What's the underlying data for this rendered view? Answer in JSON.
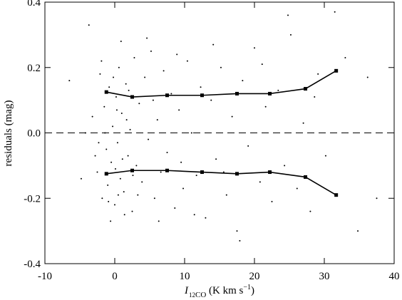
{
  "chart_data": {
    "type": "scatter",
    "ylabel": "residuals (mag)",
    "xlabel_parts": [
      "I",
      "12",
      "CO",
      " (K km s",
      "−1",
      ")"
    ],
    "xlim": [
      -10,
      40
    ],
    "xticks": [
      -10,
      0,
      10,
      20,
      30,
      40
    ],
    "ylim": [
      -0.4,
      0.4
    ],
    "yticks": [
      -0.4,
      -0.2,
      {
        "value": 0,
        "label": "0.0"
      },
      0.2,
      0.4
    ],
    "reference_line": {
      "y": 0,
      "style": "dashed"
    },
    "color": "#000000",
    "x": [
      -3.2,
      -2.5,
      -2.1,
      -1.8,
      -1.5,
      -1.2,
      -1.0,
      -0.8,
      -0.5,
      -0.3,
      0,
      0.2,
      0.4,
      0.6,
      0.8,
      1.0,
      1.3,
      1.6,
      1.9,
      2.2,
      2.5,
      2.8,
      3.1,
      3.5,
      3.9,
      4.3,
      4.8,
      5.2,
      5.7,
      6.1,
      6.6,
      7.0,
      7.5,
      8.1,
      8.6,
      9.2,
      9.8,
      10.4,
      11.0,
      11.7,
      12.3,
      13.0,
      13.8,
      14.5,
      15.2,
      16.0,
      16.8,
      17.5,
      18.3,
      19.1,
      20.0,
      20.8,
      21.6,
      22.5,
      23.4,
      24.3,
      25.2,
      26.1,
      27.0,
      28.0,
      29.1,
      30.2,
      31.5,
      33.0,
      34.8,
      36.2,
      37.5,
      -6.5,
      -4.8,
      -3.7,
      -0.6,
      0.9,
      1.4,
      -1.9,
      0.1,
      2.0,
      -2.8,
      -0.2,
      3.3,
      4.6,
      6.3,
      8.9,
      11.4,
      14.1,
      17.9,
      21.1,
      24.8,
      28.6,
      -1.4,
      0.5,
      1.7,
      2.6,
      -2.3,
      5.5,
      9.5,
      15.6,
      -4.2,
      -0.9,
      0.3,
      1.1
    ],
    "y": [
      0.05,
      -0.12,
      0.18,
      -0.2,
      0.08,
      -0.05,
      -0.16,
      0.14,
      -0.09,
      0.02,
      -0.22,
      0.11,
      -0.03,
      0.2,
      -0.14,
      0.06,
      -0.18,
      0.15,
      -0.07,
      0.01,
      -0.24,
      0.23,
      -0.1,
      0.09,
      -0.15,
      0.17,
      -0.02,
      0.25,
      -0.2,
      0.04,
      -0.12,
      0.19,
      -0.06,
      0.12,
      -0.23,
      0.07,
      -0.17,
      0.22,
      0.0,
      -0.13,
      0.14,
      -0.26,
      0.1,
      -0.08,
      0.2,
      -0.19,
      0.05,
      -0.3,
      0.16,
      -0.04,
      0.26,
      -0.15,
      0.08,
      -0.21,
      0.13,
      -0.1,
      0.3,
      -0.17,
      0.03,
      -0.24,
      0.18,
      -0.07,
      0.37,
      0.23,
      -0.3,
      0.17,
      -0.2,
      0.16,
      -0.14,
      0.33,
      -0.27,
      0.28,
      -0.25,
      0.22,
      -0.11,
      0.13,
      -0.07,
      0.17,
      -0.19,
      0.29,
      -0.27,
      0.24,
      -0.25,
      0.27,
      -0.33,
      0.21,
      0.36,
      0.11,
      0.0,
      -0.19,
      0.04,
      -0.13,
      -0.03,
      0.1,
      -0.09,
      -0.12,
      0.0,
      -0.21,
      0.07,
      -0.08
    ],
    "series": [
      {
        "color": "#000000",
        "x": [
          -1.2,
          2.5,
          7.5,
          12.5,
          17.5,
          22.2,
          27.3,
          31.7
        ],
        "values": [
          0.125,
          0.11,
          0.115,
          0.115,
          0.12,
          0.12,
          0.135,
          0.19
        ]
      },
      {
        "color": "#000000",
        "x": [
          -1.2,
          2.5,
          7.5,
          12.5,
          17.5,
          22.2,
          27.3,
          31.7
        ],
        "values": [
          -0.125,
          -0.115,
          -0.115,
          -0.12,
          -0.125,
          -0.12,
          -0.135,
          -0.19
        ]
      }
    ]
  }
}
